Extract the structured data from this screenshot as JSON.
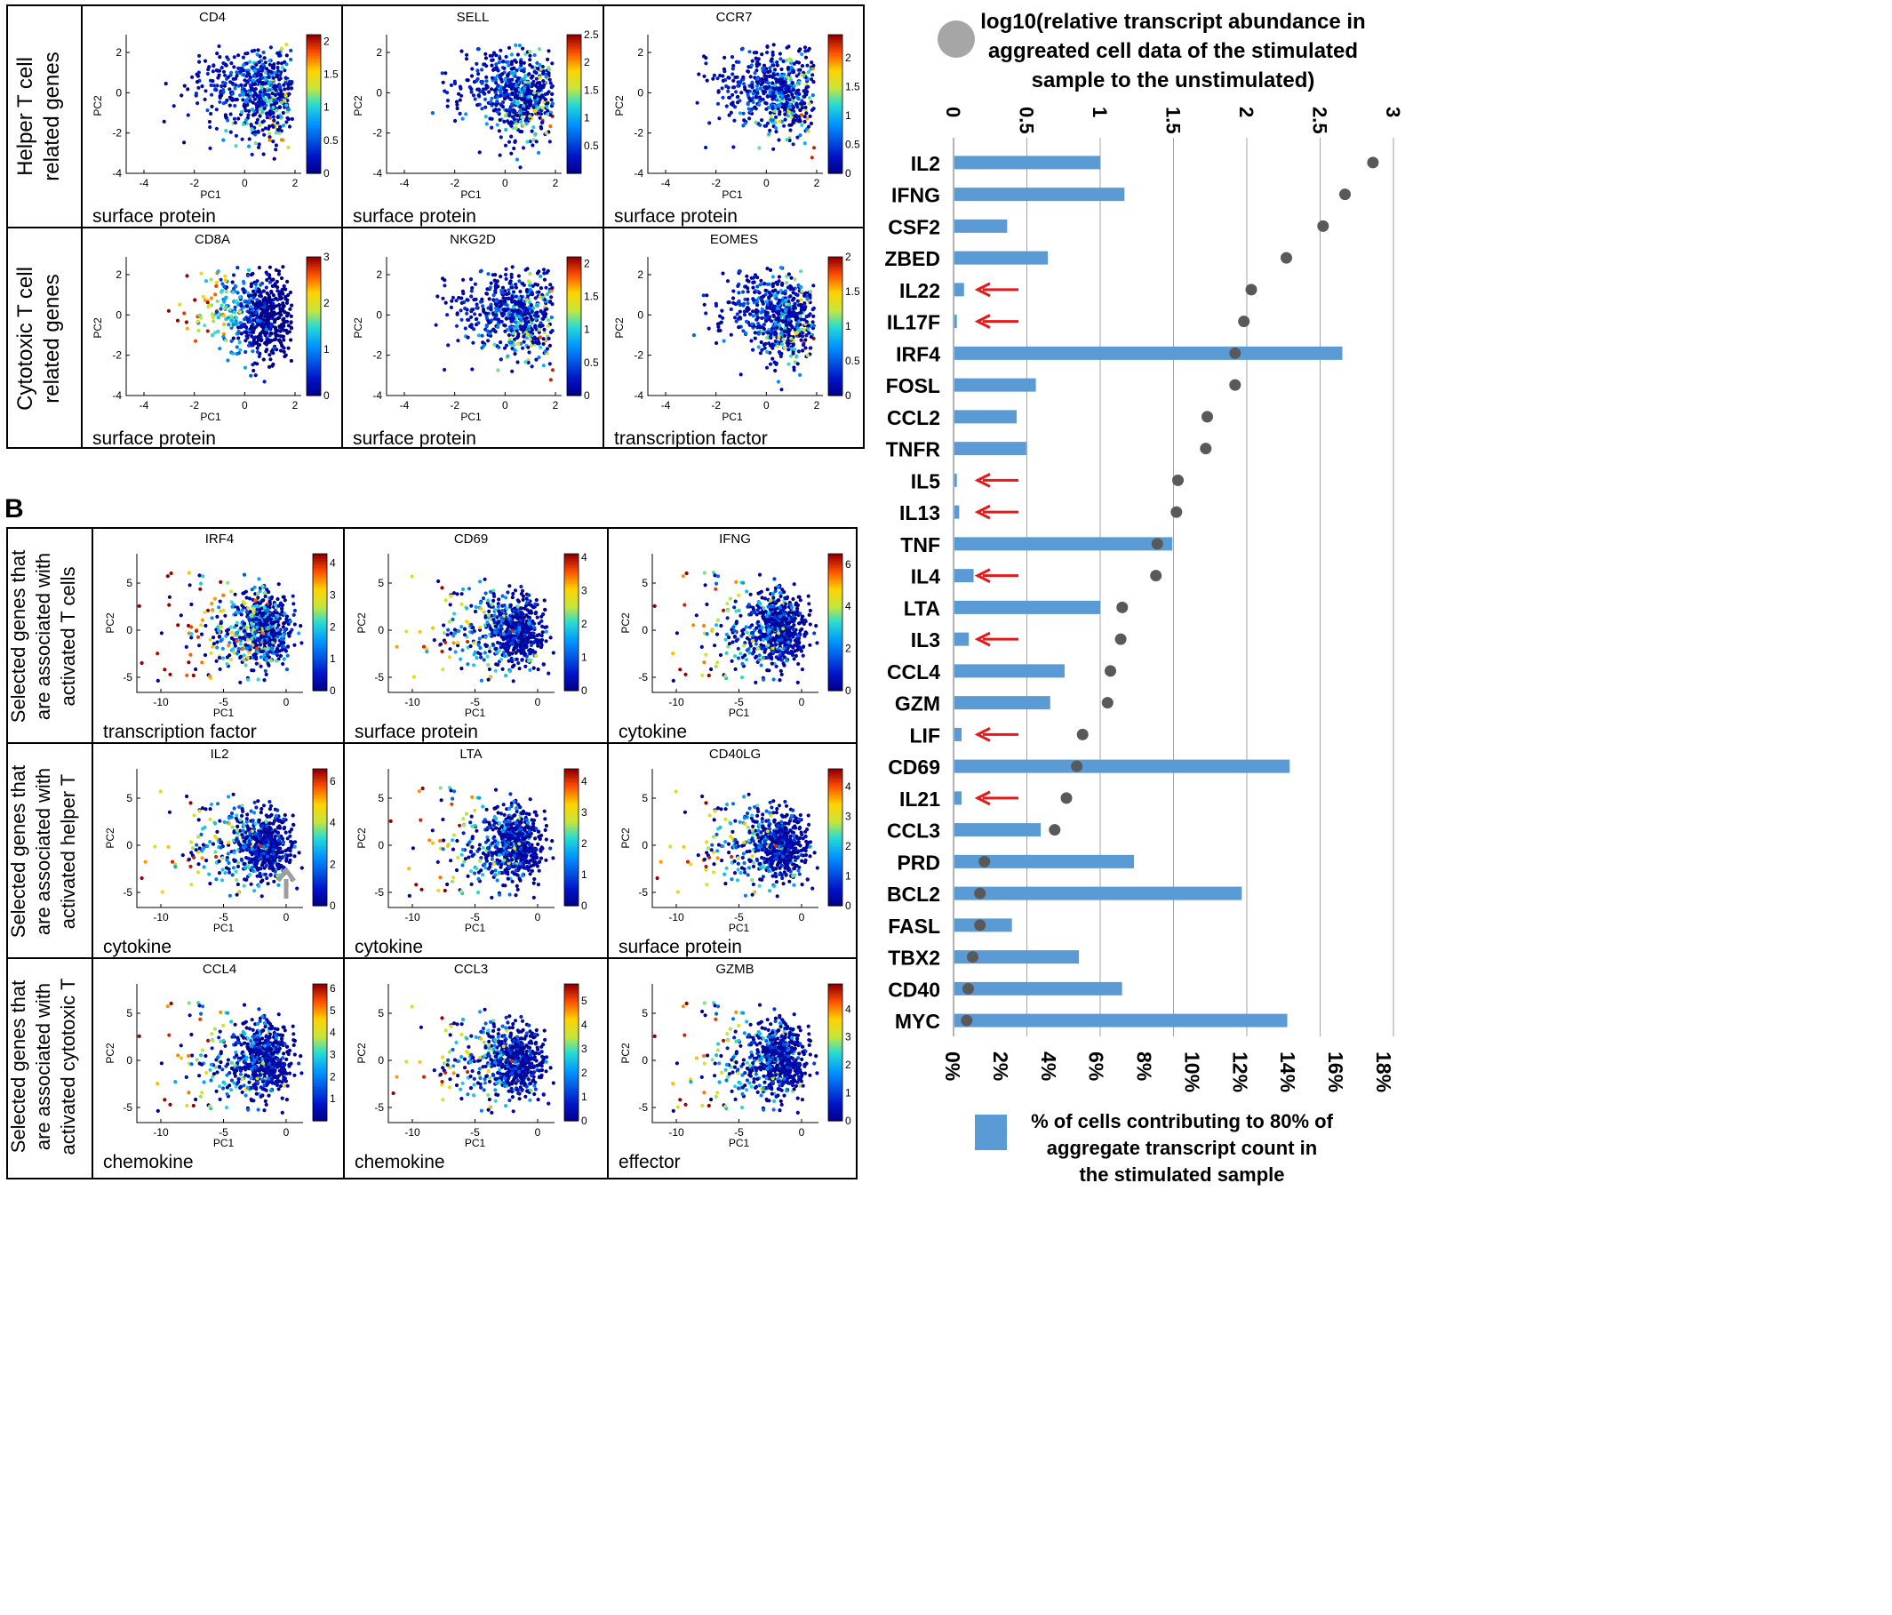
{
  "panelB_letter": "B",
  "panelA": {
    "rows": [
      {
        "label_lines": [
          "Helper T cell",
          "related genes"
        ],
        "plots": [
          {
            "gene": "CD4",
            "category": "surface protein",
            "colorbar_ticks": [
              "0",
              "0.5",
              "1",
              "1.5",
              "2"
            ],
            "cmax": 2.1
          },
          {
            "gene": "SELL",
            "category": "surface protein",
            "colorbar_ticks": [
              "0.5",
              "1",
              "1.5",
              "2",
              "2.5"
            ],
            "cmax": 2.5
          },
          {
            "gene": "CCR7",
            "category": "surface protein",
            "colorbar_ticks": [
              "0",
              "0.5",
              "1",
              "1.5",
              "2"
            ],
            "cmax": 2.4
          }
        ]
      },
      {
        "label_lines": [
          "Cytotoxic T cell",
          "related genes"
        ],
        "plots": [
          {
            "gene": "CD8A",
            "category": "surface protein",
            "colorbar_ticks": [
              "0",
              "1",
              "2",
              "3"
            ],
            "cmax": 3
          },
          {
            "gene": "NKG2D",
            "category": "surface protein",
            "colorbar_ticks": [
              "0",
              "0.5",
              "1",
              "1.5",
              "2"
            ],
            "cmax": 2.1
          },
          {
            "gene": "EOMES",
            "category": "transcription factor",
            "colorbar_ticks": [
              "0",
              "0.5",
              "1",
              "1.5",
              "2"
            ],
            "cmax": 2.0
          }
        ]
      }
    ],
    "x_ticks": [
      "-4",
      "-2",
      "0",
      "2"
    ],
    "y_ticks": [
      "-4",
      "-2",
      "0",
      "2"
    ],
    "xlabel": "PC1",
    "ylabel": "PC2"
  },
  "panelB": {
    "rows": [
      {
        "label_lines": [
          "Selected genes that",
          "are associated with",
          "activated T cells"
        ],
        "plots": [
          {
            "gene": "IRF4",
            "category": "transcription factor",
            "colorbar_ticks": [
              "0",
              "1",
              "2",
              "3",
              "4"
            ],
            "cmax": 4.3
          },
          {
            "gene": "CD69",
            "category": "surface protein",
            "colorbar_ticks": [
              "0",
              "1",
              "2",
              "3",
              "4"
            ],
            "cmax": 4.1
          },
          {
            "gene": "IFNG",
            "category": "cytokine",
            "colorbar_ticks": [
              "0",
              "2",
              "4",
              "6"
            ],
            "cmax": 6.5
          }
        ]
      },
      {
        "label_lines": [
          "Selected genes that",
          "are associated with",
          "activated helper T"
        ],
        "plots": [
          {
            "gene": "IL2",
            "category": "cytokine",
            "colorbar_ticks": [
              "0",
              "2",
              "4",
              "6"
            ],
            "cmax": 6.6
          },
          {
            "gene": "LTA",
            "category": "cytokine",
            "colorbar_ticks": [
              "0",
              "1",
              "2",
              "3",
              "4"
            ],
            "cmax": 4.4
          },
          {
            "gene": "CD40LG",
            "category": "surface protein",
            "colorbar_ticks": [
              "0",
              "1",
              "2",
              "3",
              "4"
            ],
            "cmax": 4.6
          }
        ]
      },
      {
        "label_lines": [
          "Selected genes that",
          "are associated with",
          "activated cytotoxic T"
        ],
        "plots": [
          {
            "gene": "CCL4",
            "category": "chemokine",
            "colorbar_ticks": [
              "1",
              "2",
              "3",
              "4",
              "5",
              "6"
            ],
            "cmax": 6.2
          },
          {
            "gene": "CCL3",
            "category": "chemokine",
            "colorbar_ticks": [
              "0",
              "1",
              "2",
              "3",
              "4",
              "5"
            ],
            "cmax": 5.7
          },
          {
            "gene": "GZMB",
            "category": "effector",
            "colorbar_ticks": [
              "0",
              "1",
              "2",
              "3",
              "4"
            ],
            "cmax": 4.9
          }
        ]
      }
    ],
    "x_ticks": [
      "-10",
      "-5",
      "0"
    ],
    "y_ticks": [
      "-5",
      "0",
      "5"
    ],
    "xlabel": "PC1",
    "ylabel": "PC2"
  },
  "colors": {
    "bar": "#5b9bd5",
    "dot": "#595959",
    "arrow": "#e31a1c",
    "gray_arrow": "#9e9e9e",
    "grid": "#a6a6a6"
  },
  "chart_data": [
    {
      "type": "bar",
      "title": "",
      "categories": [
        "IL2",
        "IFNG",
        "CSF2",
        "ZBED",
        "IL22",
        "IL17F",
        "IRF4",
        "FOSL",
        "CCL2",
        "TNFR",
        "IL5",
        "IL13",
        "TNF",
        "IL4",
        "LTA",
        "IL3",
        "CCL4",
        "GZM",
        "LIF",
        "CD69",
        "IL21",
        "CCL3",
        "PRD",
        "BCL2",
        "FASL",
        "TBX2",
        "CD40",
        "MYC"
      ],
      "series": [
        {
          "name": "% of cells contributing to 80% of aggregate transcript count in the stimulated sample",
          "kind": "bar",
          "axis": "bottom",
          "values": [
            6.1,
            7.1,
            2.2,
            3.9,
            0.4,
            0.1,
            16.2,
            3.4,
            2.6,
            3.0,
            0.1,
            0.2,
            9.1,
            0.8,
            6.1,
            0.6,
            4.6,
            4.0,
            0.3,
            14.0,
            0.3,
            3.6,
            7.5,
            12.0,
            2.4,
            5.2,
            7.0,
            13.9
          ]
        },
        {
          "name": "log10(relative transcript abundance in aggreated cell data of the stimulated sample to the unstimulated)",
          "kind": "dot",
          "axis": "top",
          "values": [
            2.86,
            2.67,
            2.52,
            2.27,
            2.03,
            1.98,
            1.92,
            1.92,
            1.73,
            1.72,
            1.53,
            1.52,
            1.39,
            1.38,
            1.15,
            1.14,
            1.07,
            1.05,
            0.88,
            0.84,
            0.77,
            0.69,
            0.21,
            0.18,
            0.18,
            0.13,
            0.1,
            0.09
          ]
        }
      ],
      "legend_dot_lines": [
        "log10(relative transcript abundance in",
        "aggreated cell data of the stimulated",
        "sample to the unstimulated)"
      ],
      "legend_bar_lines": [
        "% of cells contributing to 80% of",
        "aggregate transcript count in",
        "the stimulated sample"
      ],
      "top_axis": {
        "ticks": [
          "0",
          "0.5",
          "1",
          "1.5",
          "2",
          "2.5",
          "3"
        ],
        "range": [
          0,
          3
        ]
      },
      "bottom_axis": {
        "ticks": [
          "0%",
          "2%",
          "4%",
          "6%",
          "8%",
          "10%",
          "12%",
          "14%",
          "16%",
          "18%"
        ],
        "range": [
          0,
          18
        ]
      },
      "arrow_categories": [
        "IL22",
        "IL17F",
        "IL5",
        "IL13",
        "IL4",
        "IL3",
        "LIF",
        "IL21"
      ],
      "grid": true
    }
  ]
}
